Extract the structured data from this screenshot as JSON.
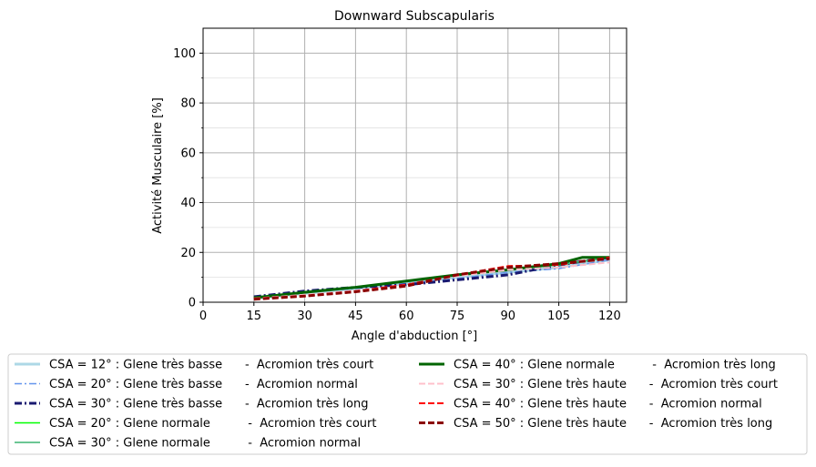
{
  "chart_data": {
    "type": "line",
    "title": "Downward Subscapularis",
    "xlabel": "Angle d'abduction [°]",
    "ylabel": "Activité Musculaire [%]",
    "xlim": [
      0,
      125
    ],
    "ylim": [
      0,
      110
    ],
    "xticks": [
      0,
      15,
      30,
      45,
      60,
      75,
      90,
      105,
      120
    ],
    "yticks": [
      0,
      20,
      40,
      60,
      80,
      100
    ],
    "grid": true,
    "legend_position": "bottom",
    "series": [
      {
        "name": "CSA = 12° : Glene très basse      -  Acromion très court",
        "color": "#add8e6",
        "dash": "solid",
        "width": 3,
        "x": [
          15,
          30,
          45,
          60,
          75,
          90,
          105,
          120
        ],
        "y": [
          1.5,
          3.5,
          5.5,
          7.5,
          10,
          12,
          14,
          17
        ]
      },
      {
        "name": "CSA = 20° : Glene très basse      -  Acromion normal",
        "color": "#6495ed",
        "dash": "dashdot",
        "width": 1.5,
        "x": [
          15,
          30,
          45,
          60,
          75,
          90,
          105,
          120
        ],
        "y": [
          1.5,
          4,
          5.5,
          7.5,
          9.5,
          12,
          13.5,
          17
        ]
      },
      {
        "name": "CSA = 30° : Glene très basse      -  Acromion très long",
        "color": "#191970",
        "dash": "dashdot",
        "width": 3,
        "x": [
          15,
          30,
          45,
          60,
          75,
          90,
          105,
          120
        ],
        "y": [
          2.2,
          4.5,
          6,
          7,
          9,
          11,
          15,
          18
        ]
      },
      {
        "name": "CSA = 20° : Glene normale          -  Acromion très court",
        "color": "#00ff00",
        "dash": "solid",
        "width": 1.5,
        "x": [
          15,
          30,
          45,
          60,
          75,
          90,
          105,
          120
        ],
        "y": [
          1.8,
          4,
          6,
          8.5,
          11,
          13,
          15,
          18
        ]
      },
      {
        "name": "CSA = 30° : Glene normale          -  Acromion normal",
        "color": "#3cb371",
        "dash": "solid",
        "width": 1.5,
        "x": [
          15,
          30,
          45,
          60,
          75,
          90,
          105,
          120
        ],
        "y": [
          1.8,
          4,
          6,
          8.5,
          11,
          13,
          15,
          18
        ]
      },
      {
        "name": "CSA = 40° : Glene normale          -  Acromion très long",
        "color": "#006400",
        "dash": "solid",
        "width": 3,
        "x": [
          15,
          30,
          45,
          60,
          75,
          90,
          105,
          112,
          120
        ],
        "y": [
          1.8,
          4,
          6,
          8.5,
          11,
          13,
          15.5,
          18,
          18
        ]
      },
      {
        "name": "CSA = 30° : Glene très haute      -  Acromion très court",
        "color": "#ffc0cb",
        "dash": "dashed",
        "width": 2,
        "x": [
          15,
          30,
          45,
          60,
          75,
          90,
          105,
          120
        ],
        "y": [
          1.5,
          3,
          4.5,
          7,
          10.5,
          13,
          14,
          16
        ]
      },
      {
        "name": "CSA = 40° : Glene très haute      -  Acromion normal",
        "color": "#ff0000",
        "dash": "dashed",
        "width": 2,
        "x": [
          15,
          30,
          45,
          60,
          75,
          90,
          105,
          120
        ],
        "y": [
          1.5,
          2.5,
          4.5,
          7,
          11,
          14.5,
          15,
          18
        ]
      },
      {
        "name": "CSA = 50° : Glene très haute      -  Acromion très long",
        "color": "#8b0000",
        "dash": "dashed",
        "width": 3,
        "x": [
          15,
          30,
          45,
          60,
          75,
          90,
          105,
          120
        ],
        "y": [
          1.2,
          2.5,
          4.2,
          6.5,
          11,
          14,
          15.5,
          17.5
        ]
      }
    ]
  }
}
